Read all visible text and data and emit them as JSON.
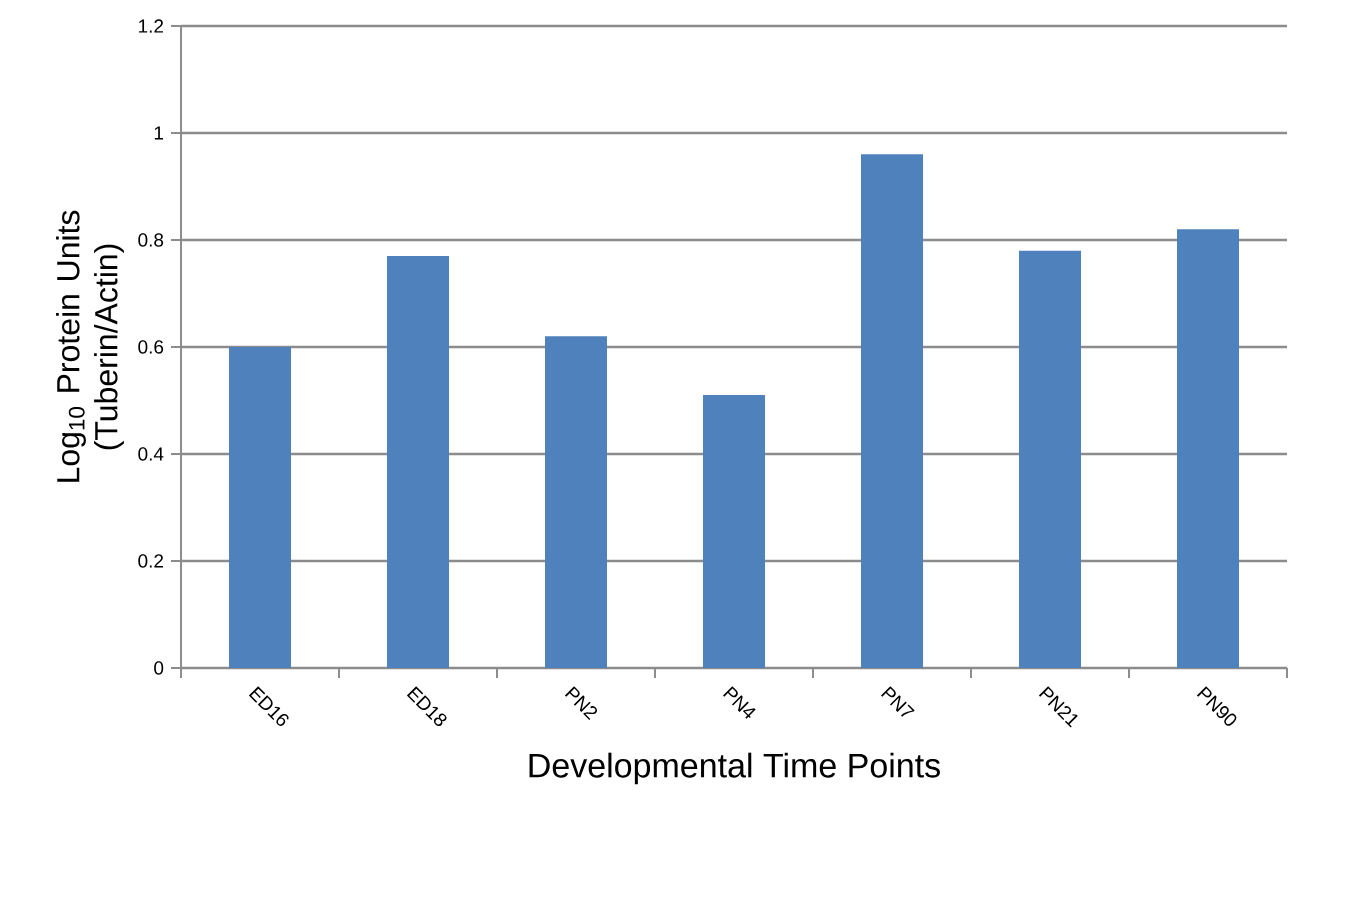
{
  "chart_data": {
    "type": "bar",
    "categories": [
      "ED16",
      "ED18",
      "PN2",
      "PN4",
      "PN7",
      "PN21",
      "PN90"
    ],
    "values": [
      0.6,
      0.77,
      0.62,
      0.51,
      0.96,
      0.78,
      0.82
    ],
    "color": "#4f81bd",
    "xlabel": "Developmental Time Points",
    "ylabel": "Log$_{10}$ Protein Units (Tuberin/Actin)",
    "ylim": [
      0,
      1.2
    ],
    "yticks": [
      0,
      0.2,
      0.4,
      0.6,
      0.8,
      1,
      1.2
    ],
    "grid": "y"
  }
}
